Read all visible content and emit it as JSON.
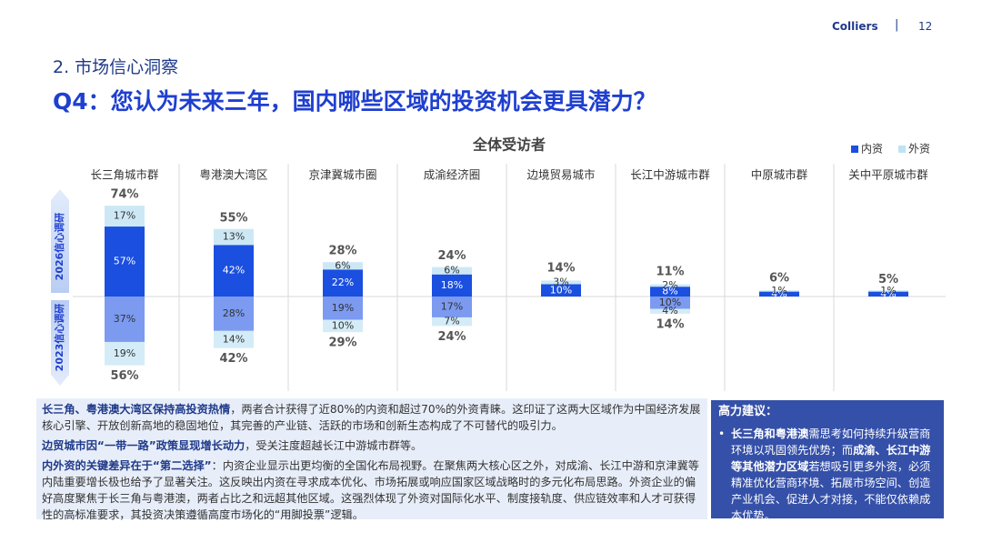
{
  "header": {
    "brand": "Colliers",
    "page": "12",
    "section": "2. 市场信心洞察",
    "question": "Q4：您认为未来三年，国内哪些区域的投资机会更具潜力？"
  },
  "chart_data": {
    "type": "diverging_stacked_bar",
    "title": "全体受访者",
    "categories": [
      "长三角城市群",
      "粤港澳大湾区",
      "京津冀城市圈",
      "成渝经济圈",
      "边境贸易城市",
      "长江中游城市群",
      "中原城市群",
      "关中平原城市群"
    ],
    "legend": {
      "items": [
        "内资",
        "外资"
      ],
      "colors": [
        "#1a4fe0",
        "#bfe3f3"
      ],
      "position": "top-right"
    },
    "groups": [
      {
        "name": "2026信心调研",
        "direction": "up",
        "series": [
          {
            "color": "#1a4fe0",
            "values": [
              57,
              42,
              22,
              18,
              10,
              8,
              4,
              4
            ],
            "value_labels": [
              "57%",
              "42%",
              "22%",
              "18%",
              "10%",
              "8%",
              "4%",
              "4%"
            ]
          },
          {
            "color": "#cde8f5",
            "values": [
              17,
              13,
              6,
              6,
              3,
              2,
              1,
              1
            ],
            "value_labels": [
              "17%",
              "13%",
              "6%",
              "6%",
              "3%",
              "2%",
              "1%",
              "1%"
            ]
          }
        ],
        "totals": [
          74,
          55,
          28,
          24,
          14,
          11,
          6,
          5
        ],
        "total_labels": [
          "74%",
          "55%",
          "28%",
          "24%",
          "14%",
          "11%",
          "6%",
          "5%"
        ]
      },
      {
        "name": "2023信心调研",
        "direction": "down",
        "series": [
          {
            "color": "#7b9af0",
            "values": [
              37,
              28,
              19,
              17,
              null,
              10,
              null,
              null
            ],
            "value_labels": [
              "37%",
              "28%",
              "19%",
              "17%",
              null,
              "10%",
              null,
              null
            ]
          },
          {
            "color": "#d4ecf7",
            "values": [
              19,
              14,
              10,
              7,
              null,
              4,
              null,
              null
            ],
            "value_labels": [
              "19%",
              "14%",
              "10%",
              "7%",
              null,
              "4%",
              null,
              null
            ]
          }
        ],
        "totals": [
          56,
          42,
          29,
          24,
          null,
          14,
          null,
          null
        ],
        "total_labels": [
          "56%",
          "42%",
          "29%",
          "24%",
          null,
          "14%",
          null,
          null
        ]
      }
    ]
  },
  "insights": {
    "paragraphs": [
      {
        "bold": "长三角、粤港澳大湾区保持高投资热情",
        "text": "，两者合计获得了近80%的内资和超过70%的外资青睐。这印证了这两大区域作为中国经济发展核心引擎、开放创新高地的稳固地位，其完善的产业链、活跃的市场和创新生态构成了不可替代的吸引力。"
      },
      {
        "bold": "边贸城市因“一带一路”政策显现增长动力",
        "text": "，受关注度超越长江中游城市群等。"
      },
      {
        "bold": "内外资的关键差异在于“第二选择”",
        "text": "：内资企业显示出更均衡的全国化布局视野。在聚焦两大核心区之外，对成渝、长江中游和京津冀等内陆重要增长极也给予了显著关注。这反映出内资在寻求成本优化、市场拓展或响应国家区域战略时的多元化布局思路。外资企业的偏好高度聚焦于长三角与粤港澳，两者占比之和远超其他区域。这强烈体现了外资对国际化水平、制度接轨度、供应链效率和人才可获得性的高标准要求，其投资决策遵循高度市场化的“用脚投票”逻辑。"
      }
    ]
  },
  "advice": {
    "title": "高力建议：",
    "bullet": "•",
    "segments": [
      {
        "bold": true,
        "text": "长三角和粤港澳"
      },
      {
        "bold": false,
        "text": "需思考如何持续升级营商环境以巩固领先优势；而"
      },
      {
        "bold": true,
        "text": "成渝、长江中游等其他潜力区域"
      },
      {
        "bold": false,
        "text": "若想吸引更多外资，必须精准优化营商环境、拓展市场空间、创造产业机会、促进人才对接，不能仅依赖成本优势。"
      }
    ]
  }
}
